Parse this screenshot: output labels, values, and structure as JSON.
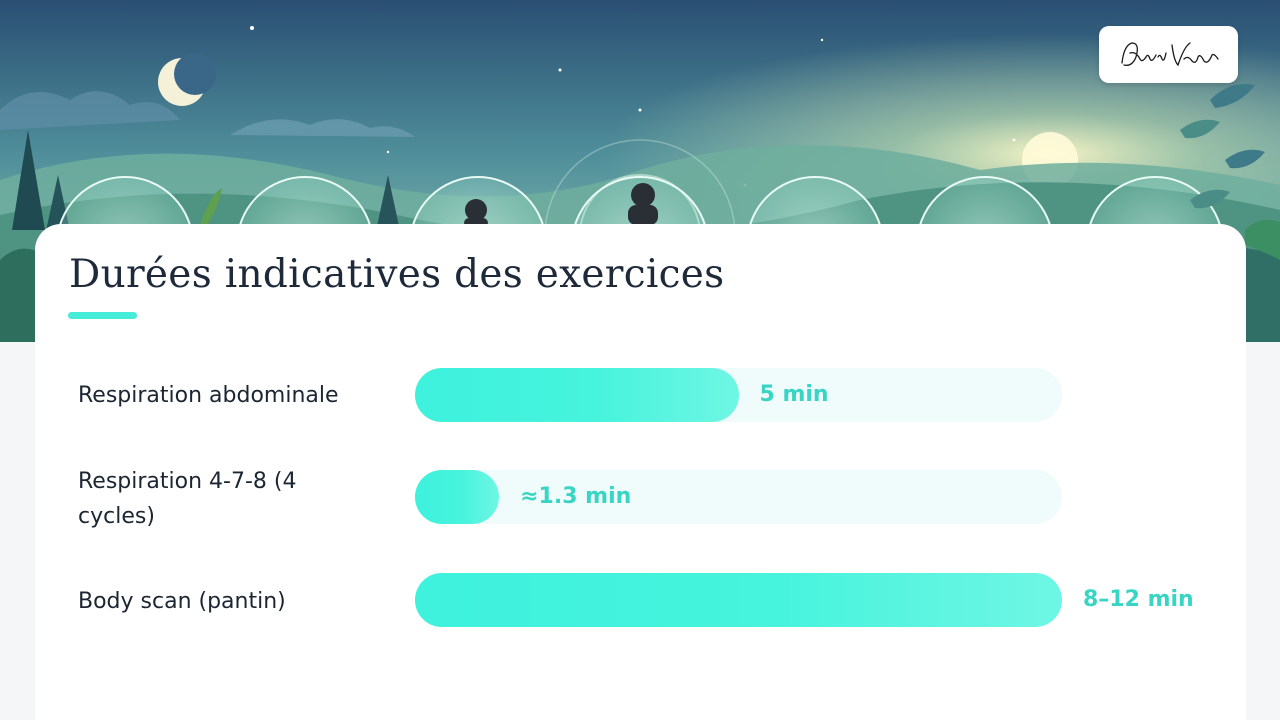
{
  "slide": {
    "title": "Durées indicatives des exercices"
  },
  "colors": {
    "accent": "#45ecd8",
    "bar_fill": "#46f3dc",
    "bar_track": "#effcfb",
    "value_text": "#39d5c4",
    "title_text": "#1e2a3a"
  },
  "signature": {
    "text": "David Vigneron"
  },
  "chart_data": {
    "type": "bar",
    "orientation": "horizontal",
    "categories": [
      "Respiration abdominale",
      "Respiration 4-7-8 (4 cycles)",
      "Body scan (pantin)"
    ],
    "values": [
      5,
      1.3,
      10
    ],
    "value_labels": [
      "5 min",
      "≈1.3 min",
      "8–12 min"
    ],
    "unit": "min",
    "xlim": [
      0,
      10
    ],
    "grid": false,
    "legend": "none"
  }
}
